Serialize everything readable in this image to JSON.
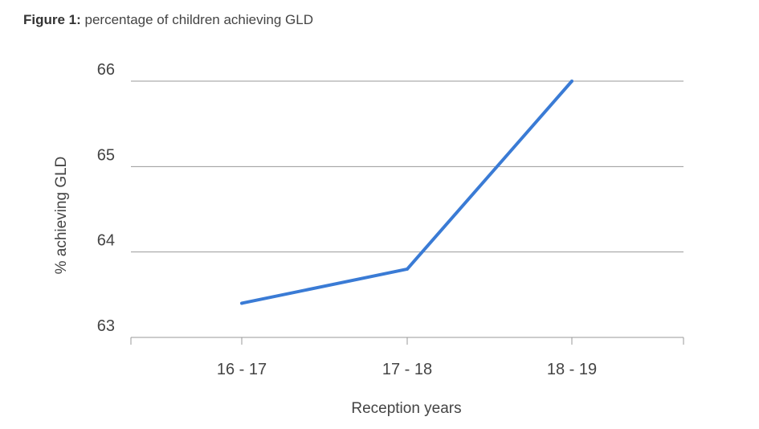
{
  "caption": {
    "prefix": "Figure 1:",
    "text": " percentage of children achieving GLD"
  },
  "chart_data": {
    "type": "line",
    "title": "Figure 1: percentage of children achieving GLD",
    "xlabel": "Reception years",
    "ylabel": "% achieving GLD",
    "categories": [
      "16 - 17",
      "17 - 18",
      "18 - 19"
    ],
    "series": [
      {
        "values": [
          63.4,
          63.8,
          66.0
        ]
      }
    ],
    "ylim": [
      63,
      66
    ],
    "yticks": [
      63,
      64,
      65,
      66
    ],
    "grid": true,
    "legend": "none",
    "line_color": "#3a7bd5",
    "grid_color": "#999999"
  }
}
